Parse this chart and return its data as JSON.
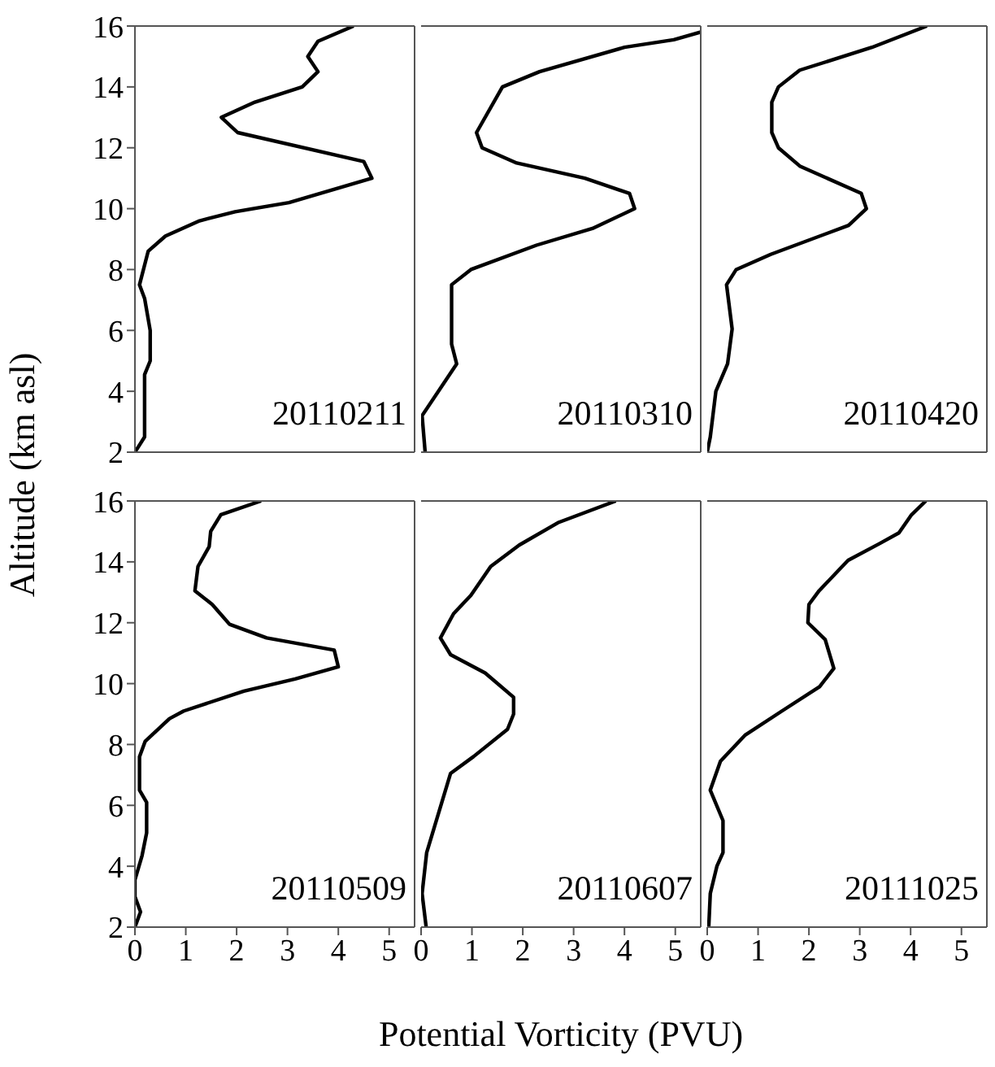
{
  "chart_data": [
    {
      "type": "line",
      "ylabel": "Altitude (km asl)",
      "color": "#000000",
      "annotations": [
        "20110211"
      ],
      "xlim": [
        0,
        5.5
      ],
      "xticks": [
        0,
        1,
        2,
        3,
        4,
        5
      ],
      "ylim": [
        2,
        16
      ],
      "yticks": [
        2,
        4,
        6,
        8,
        10,
        12,
        14,
        16
      ],
      "tick_labels": "y",
      "x": [
        0,
        0.19,
        0.19,
        0.3,
        0.3,
        0.19,
        0.09,
        0.26,
        0.6,
        1.27,
        1.97,
        3.03,
        4.66,
        4.5,
        2.02,
        1.7,
        2.36,
        3.29,
        3.6,
        3.4,
        3.6,
        4.3
      ],
      "values": [
        2,
        2.5,
        4.55,
        5,
        6,
        7.05,
        7.5,
        8.6,
        9.1,
        9.6,
        9.9,
        10.2,
        11,
        11.55,
        12.5,
        13,
        13.5,
        14,
        14.5,
        15,
        15.5,
        16
      ]
    },
    {
      "type": "line",
      "color": "#000000",
      "annotations": [
        "20110310"
      ],
      "xlim": [
        0,
        5.5
      ],
      "xticks": [
        0,
        1,
        2,
        3,
        4,
        5
      ],
      "ylim": [
        2,
        16
      ],
      "yticks": [
        2,
        4,
        6,
        8,
        10,
        12,
        14,
        16
      ],
      "tick_labels": false,
      "x": [
        0.08,
        0.02,
        0.7,
        0.6,
        0.6,
        0.98,
        2.27,
        3.37,
        4.2,
        4.1,
        3.22,
        1.88,
        1.2,
        1.09,
        1.6,
        2.33,
        4.0,
        4.97,
        5.5
      ],
      "values": [
        2,
        3.2,
        4.9,
        5.55,
        7.5,
        8,
        8.8,
        9.35,
        10,
        10.5,
        11,
        11.5,
        12,
        12.5,
        14,
        14.5,
        15.3,
        15.55,
        15.8
      ]
    },
    {
      "type": "line",
      "color": "#000000",
      "annotations": [
        "20110420"
      ],
      "xlim": [
        0,
        5.5
      ],
      "xticks": [
        0,
        1,
        2,
        3,
        4,
        5
      ],
      "ylim": [
        2,
        16
      ],
      "yticks": [
        2,
        4,
        6,
        8,
        10,
        12,
        14,
        16
      ],
      "tick_labels": false,
      "x": [
        0,
        0.06,
        0.17,
        0.4,
        0.49,
        0.38,
        0.57,
        1.25,
        2.78,
        3.13,
        3.03,
        1.82,
        1.4,
        1.27,
        1.27,
        1.4,
        1.82,
        3.24,
        4.32
      ],
      "values": [
        2,
        2.5,
        4,
        4.9,
        6.05,
        7.5,
        8,
        8.5,
        9.45,
        10,
        10.5,
        11.4,
        12,
        12.5,
        13.5,
        14,
        14.55,
        15.3,
        16
      ]
    },
    {
      "type": "line",
      "color": "#000000",
      "annotations": [
        "20110509"
      ],
      "xlim": [
        0,
        5.5
      ],
      "xticks": [
        0,
        1,
        2,
        3,
        4,
        5
      ],
      "ylim": [
        2,
        16
      ],
      "yticks": [
        2,
        4,
        6,
        8,
        10,
        12,
        14,
        16
      ],
      "x": [
        0,
        0.11,
        0,
        0,
        0.14,
        0.23,
        0.23,
        0.09,
        0.09,
        0.2,
        0.68,
        0.96,
        2.14,
        3.15,
        4.0,
        3.92,
        2.59,
        1.86,
        1.52,
        1.18,
        1.24,
        1.46,
        1.49,
        1.69,
        2.48
      ],
      "values": [
        2,
        2.5,
        3,
        3.55,
        4.35,
        5.1,
        6.1,
        6.5,
        7.6,
        8.1,
        8.85,
        9.1,
        9.75,
        10.15,
        10.55,
        11.1,
        11.5,
        11.95,
        12.6,
        13.05,
        13.85,
        14.5,
        15,
        15.55,
        16
      ]
    },
    {
      "type": "line",
      "xlabel": "Potential Vorticity (PVU)",
      "color": "#000000",
      "annotations": [
        "20110607"
      ],
      "xlim": [
        0,
        5.5
      ],
      "xticks": [
        0,
        1,
        2,
        3,
        4,
        5
      ],
      "ylim": [
        2,
        16
      ],
      "yticks": [
        2,
        4,
        6,
        8,
        10,
        12,
        14,
        16
      ],
      "tick_labels": "x",
      "x": [
        0.1,
        0.02,
        0.11,
        0.58,
        1.03,
        1.7,
        1.82,
        1.82,
        1.26,
        0.58,
        0.38,
        0.64,
        0.98,
        1.37,
        1.93,
        2.71,
        3.83
      ],
      "values": [
        2,
        3.1,
        4.45,
        7.05,
        7.6,
        8.5,
        9,
        9.55,
        10.35,
        10.95,
        11.5,
        12.3,
        12.9,
        13.85,
        14.55,
        15.3,
        16
      ]
    },
    {
      "type": "line",
      "color": "#000000",
      "annotations": [
        "20111025"
      ],
      "xlim": [
        0,
        5.5
      ],
      "xticks": [
        0,
        1,
        2,
        3,
        4,
        5
      ],
      "ylim": [
        2,
        16
      ],
      "yticks": [
        2,
        4,
        6,
        8,
        10,
        12,
        14,
        16
      ],
      "tick_labels": "x",
      "x": [
        0.03,
        0.06,
        0.19,
        0.31,
        0.31,
        0.06,
        0.26,
        0.74,
        1.47,
        2.21,
        2.49,
        2.32,
        1.98,
        2.0,
        2.2,
        2.77,
        3.39,
        3.77,
        4.02,
        4.3
      ],
      "values": [
        2,
        3.1,
        4,
        4.45,
        5.5,
        6.5,
        7.45,
        8.3,
        9.1,
        9.9,
        10.5,
        11.45,
        12,
        12.6,
        13.05,
        14.05,
        14.6,
        14.95,
        15.55,
        16
      ]
    }
  ]
}
